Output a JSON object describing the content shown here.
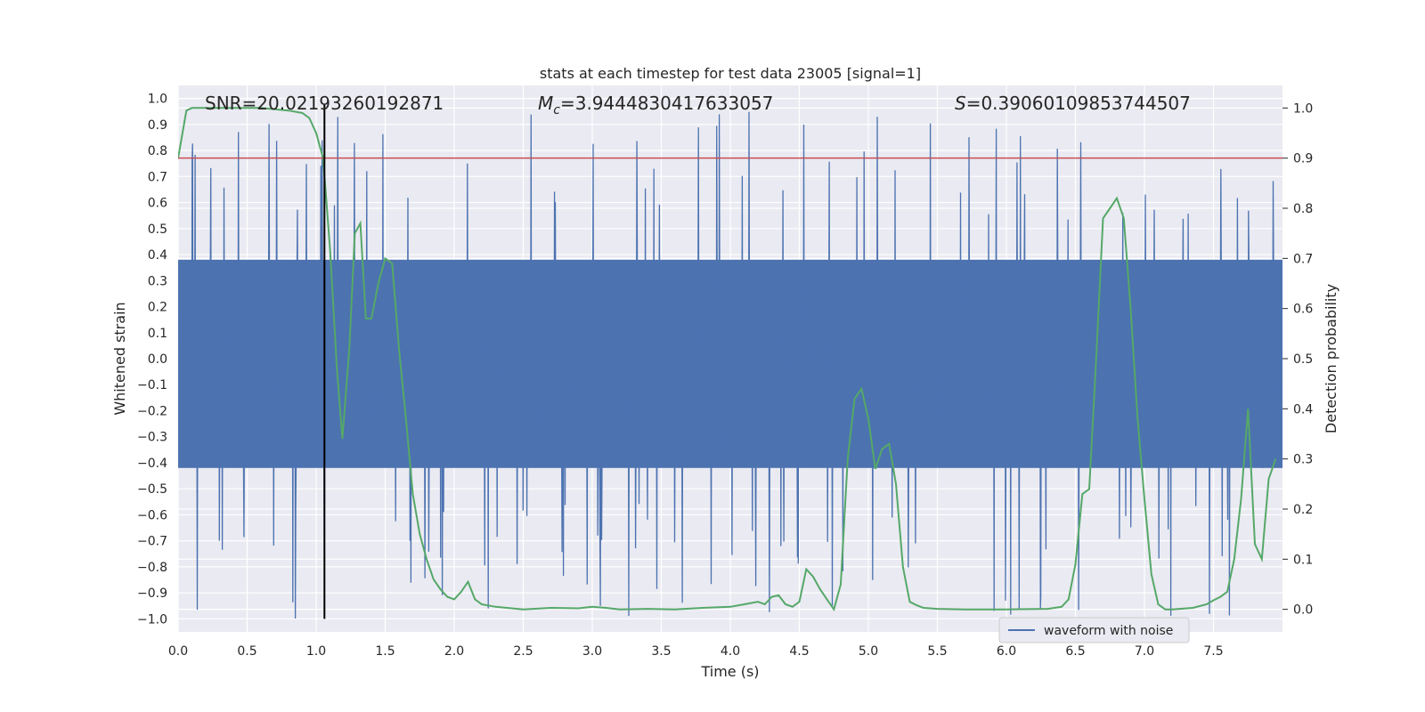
{
  "chart_data": {
    "type": "line",
    "title": "stats at each timestep for test data 23005 [signal=1]",
    "xlabel": "Time (s)",
    "ylabel": "Whitened strain",
    "y2label": "Detection probability",
    "xlim": [
      0.0,
      8.0
    ],
    "ylim": [
      -1.05,
      1.05
    ],
    "y2lim": [
      -0.045,
      1.045
    ],
    "x_ticks": [
      "0.0",
      "0.5",
      "1.0",
      "1.5",
      "2.0",
      "2.5",
      "3.0",
      "3.5",
      "4.0",
      "4.5",
      "5.0",
      "5.5",
      "6.0",
      "6.5",
      "7.0",
      "7.5"
    ],
    "y_ticks": [
      "1.0",
      "0.9",
      "0.8",
      "0.7",
      "0.6",
      "0.5",
      "0.4",
      "0.3",
      "0.2",
      "0.1",
      "0.0",
      "-0.1",
      "-0.2",
      "-0.3",
      "-0.4",
      "-0.5",
      "-0.6",
      "-0.7",
      "-0.8",
      "-0.9",
      "-1.0"
    ],
    "y2_ticks": [
      "1.0",
      "0.9",
      "0.8",
      "0.7",
      "0.6",
      "0.5",
      "0.4",
      "0.3",
      "0.2",
      "0.1",
      "0.0"
    ],
    "annotations": {
      "snr": "SNR=20.02193260192871",
      "mc_symbol": "M",
      "mc_sub": "c",
      "mc_value": "=3.9444830417633057",
      "s_symbol": "S",
      "s_value": "=0.39060109853744507"
    },
    "threshold": 0.9,
    "event_time": 1.06,
    "waveform_envelope": {
      "name": "waveform with noise",
      "core_range": [
        -0.42,
        0.38
      ],
      "peak_range": [
        -1.0,
        0.96
      ]
    },
    "detection_probability": {
      "name": "detection probability",
      "x": [
        0.0,
        0.06,
        0.1,
        0.2,
        0.4,
        0.6,
        0.8,
        0.9,
        0.95,
        1.0,
        1.05,
        1.1,
        1.15,
        1.19,
        1.24,
        1.28,
        1.32,
        1.36,
        1.4,
        1.45,
        1.5,
        1.55,
        1.6,
        1.65,
        1.7,
        1.75,
        1.8,
        1.85,
        1.9,
        1.95,
        2.0,
        2.05,
        2.1,
        2.15,
        2.2,
        2.3,
        2.5,
        2.7,
        2.9,
        3.0,
        3.1,
        3.2,
        3.4,
        3.6,
        3.8,
        4.0,
        4.1,
        4.2,
        4.25,
        4.3,
        4.35,
        4.4,
        4.45,
        4.5,
        4.55,
        4.6,
        4.65,
        4.7,
        4.75,
        4.8,
        4.85,
        4.9,
        4.95,
        5.0,
        5.05,
        5.1,
        5.15,
        5.2,
        5.25,
        5.3,
        5.35,
        5.4,
        5.5,
        5.7,
        6.0,
        6.3,
        6.4,
        6.45,
        6.5,
        6.55,
        6.6,
        6.65,
        6.7,
        6.75,
        6.8,
        6.85,
        6.9,
        6.95,
        7.0,
        7.05,
        7.1,
        7.15,
        7.2,
        7.35,
        7.45,
        7.5,
        7.55,
        7.6,
        7.65,
        7.7,
        7.75,
        7.8,
        7.85,
        7.9,
        7.95
      ],
      "values": [
        0.9,
        0.995,
        1.0,
        1.0,
        1.0,
        1.0,
        0.995,
        0.99,
        0.98,
        0.95,
        0.9,
        0.72,
        0.48,
        0.34,
        0.52,
        0.75,
        0.77,
        0.58,
        0.58,
        0.65,
        0.7,
        0.69,
        0.52,
        0.38,
        0.23,
        0.15,
        0.1,
        0.06,
        0.04,
        0.025,
        0.02,
        0.035,
        0.055,
        0.02,
        0.01,
        0.005,
        0.0,
        0.003,
        0.002,
        0.005,
        0.003,
        0.0,
        0.001,
        0.0,
        0.003,
        0.005,
        0.01,
        0.015,
        0.01,
        0.025,
        0.028,
        0.01,
        0.005,
        0.015,
        0.08,
        0.065,
        0.04,
        0.02,
        0.0,
        0.05,
        0.3,
        0.42,
        0.44,
        0.38,
        0.28,
        0.32,
        0.33,
        0.25,
        0.085,
        0.015,
        0.008,
        0.003,
        0.001,
        0.0,
        0.0,
        0.001,
        0.005,
        0.02,
        0.09,
        0.23,
        0.24,
        0.5,
        0.78,
        0.8,
        0.82,
        0.78,
        0.6,
        0.38,
        0.22,
        0.07,
        0.01,
        0.0,
        0.0,
        0.003,
        0.01,
        0.018,
        0.025,
        0.035,
        0.1,
        0.22,
        0.4,
        0.13,
        0.1,
        0.26,
        0.3
      ]
    },
    "colors": {
      "background": "#eaeaf2",
      "grid": "#ffffff",
      "waveform": "#4c72b0",
      "probability": "#55a868",
      "threshold": "#c44e52",
      "event_line": "#000000"
    },
    "legend": [
      "waveform with noise"
    ]
  }
}
